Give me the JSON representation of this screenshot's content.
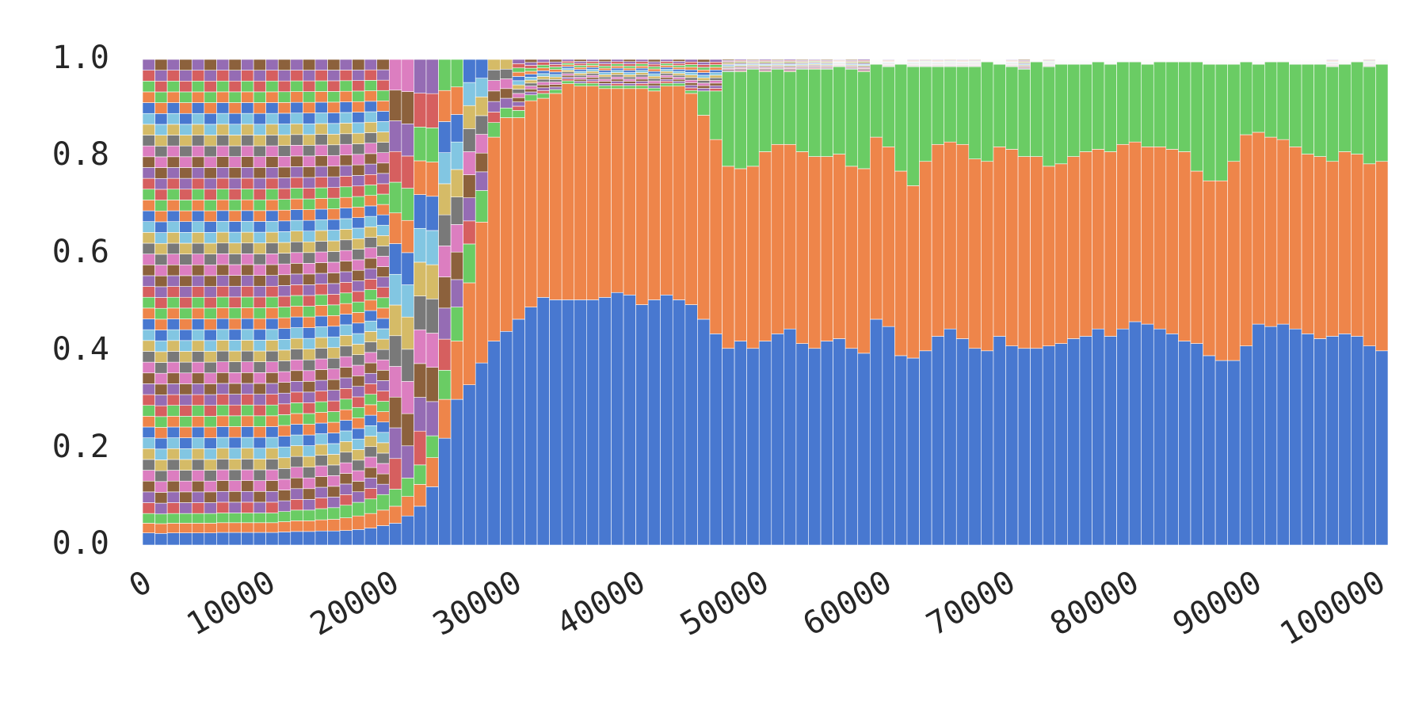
{
  "chart_data": {
    "type": "bar",
    "stacked": true,
    "normalized": true,
    "title": "",
    "xlabel": "",
    "ylabel": "",
    "xlim": [
      0,
      100000
    ],
    "ylim": [
      0,
      1.0
    ],
    "grid": false,
    "legend": "none",
    "x_ticks": [
      "0",
      "10000",
      "20000",
      "30000",
      "40000",
      "50000",
      "60000",
      "70000",
      "80000",
      "90000",
      "100000"
    ],
    "y_ticks": [
      "0.0",
      "0.2",
      "0.4",
      "0.6",
      "0.8",
      "1.0"
    ],
    "bin_width": 1000,
    "num_bins": 101,
    "series_colors": [
      "#4878d0",
      "#ee854a",
      "#6acc64",
      "#d65f5f",
      "#956cb4",
      "#8c613c",
      "#dc7ec0",
      "#797979",
      "#d5bb67",
      "#82c6e2"
    ],
    "series": [
      {
        "rank": 1,
        "values": [
          0.025,
          0.024,
          0.025,
          0.025,
          0.025,
          0.025,
          0.026,
          0.026,
          0.026,
          0.026,
          0.026,
          0.027,
          0.028,
          0.028,
          0.029,
          0.029,
          0.03,
          0.032,
          0.035,
          0.04,
          0.045,
          0.06,
          0.08,
          0.12,
          0.22,
          0.3,
          0.33,
          0.375,
          0.42,
          0.44,
          0.465,
          0.49,
          0.51,
          0.505,
          0.505,
          0.505,
          0.505,
          0.51,
          0.52,
          0.515,
          0.495,
          0.505,
          0.515,
          0.505,
          0.495,
          0.465,
          0.435,
          0.405,
          0.42,
          0.405,
          0.42,
          0.435,
          0.445,
          0.415,
          0.405,
          0.42,
          0.425,
          0.405,
          0.395,
          0.465,
          0.45,
          0.39,
          0.385,
          0.4,
          0.43,
          0.445,
          0.425,
          0.405,
          0.4,
          0.43,
          0.41,
          0.405,
          0.405,
          0.41,
          0.415,
          0.425,
          0.43,
          0.445,
          0.43,
          0.445,
          0.46,
          0.455,
          0.445,
          0.435,
          0.42,
          0.415,
          0.39,
          0.38,
          0.38,
          0.41,
          0.455,
          0.45,
          0.455,
          0.445,
          0.435,
          0.425,
          0.43,
          0.435,
          0.43,
          0.41,
          0.4
        ]
      },
      {
        "rank": 2,
        "values": [
          0.02,
          0.02,
          0.02,
          0.02,
          0.02,
          0.02,
          0.02,
          0.02,
          0.02,
          0.02,
          0.02,
          0.021,
          0.022,
          0.022,
          0.023,
          0.024,
          0.026,
          0.028,
          0.03,
          0.032,
          0.035,
          0.04,
          0.045,
          0.06,
          0.08,
          0.12,
          0.21,
          0.29,
          0.42,
          0.44,
          0.415,
          0.425,
          0.41,
          0.425,
          0.445,
          0.44,
          0.44,
          0.43,
          0.42,
          0.425,
          0.445,
          0.43,
          0.43,
          0.44,
          0.435,
          0.42,
          0.4,
          0.375,
          0.355,
          0.375,
          0.39,
          0.39,
          0.38,
          0.395,
          0.395,
          0.38,
          0.38,
          0.375,
          0.38,
          0.375,
          0.37,
          0.38,
          0.355,
          0.39,
          0.395,
          0.385,
          0.4,
          0.39,
          0.39,
          0.39,
          0.405,
          0.395,
          0.395,
          0.37,
          0.37,
          0.375,
          0.38,
          0.37,
          0.38,
          0.38,
          0.37,
          0.365,
          0.375,
          0.38,
          0.39,
          0.355,
          0.36,
          0.37,
          0.41,
          0.435,
          0.395,
          0.39,
          0.38,
          0.375,
          0.37,
          0.375,
          0.36,
          0.375,
          0.375,
          0.375,
          0.39
        ]
      },
      {
        "rank": 3,
        "values": [
          0.02,
          0.02,
          0.02,
          0.02,
          0.02,
          0.02,
          0.02,
          0.02,
          0.02,
          0.02,
          0.02,
          0.021,
          0.022,
          0.022,
          0.023,
          0.024,
          0.026,
          0.028,
          0.03,
          0.032,
          0.035,
          0.038,
          0.04,
          0.045,
          0.06,
          0.07,
          0.08,
          0.065,
          0.03,
          0.02,
          0.015,
          0.012,
          0.01,
          0.008,
          0.006,
          0.006,
          0.006,
          0.006,
          0.006,
          0.006,
          0.006,
          0.006,
          0.006,
          0.006,
          0.006,
          0.05,
          0.1,
          0.195,
          0.2,
          0.2,
          0.165,
          0.155,
          0.15,
          0.17,
          0.18,
          0.18,
          0.18,
          0.2,
          0.2,
          0.15,
          0.165,
          0.22,
          0.245,
          0.195,
          0.16,
          0.155,
          0.16,
          0.19,
          0.205,
          0.17,
          0.17,
          0.18,
          0.195,
          0.205,
          0.205,
          0.19,
          0.18,
          0.18,
          0.18,
          0.17,
          0.165,
          0.17,
          0.175,
          0.18,
          0.185,
          0.225,
          0.24,
          0.24,
          0.2,
          0.15,
          0.14,
          0.155,
          0.16,
          0.17,
          0.185,
          0.19,
          0.195,
          0.18,
          0.19,
          0.2,
          0.2
        ]
      }
    ],
    "others_note": "Remaining share above the top three series is split into many thin stripes cycling the palette; at 0-20000 roughly 40+ equal stripes, at 30000+ many tiny slivers near the top."
  }
}
